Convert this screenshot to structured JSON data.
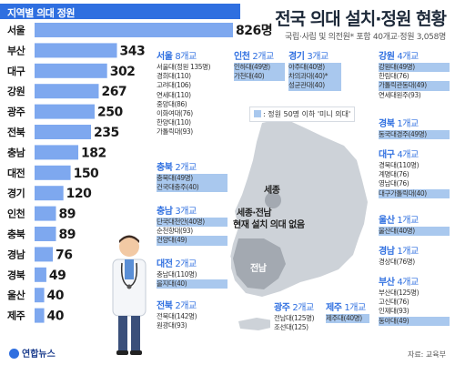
{
  "title": "전국 의대 설치·정원 현황",
  "subtitle": "국립·사립 및 의전원* 포함 40개교·정원 3,058명",
  "colors": {
    "bar": "#7ea8ef",
    "accent": "#2f6fe0",
    "mini": "#a9c8ee",
    "map": "#cdd2d8",
    "highlight": "#a3a9b1"
  },
  "chart_data": {
    "type": "bar",
    "orientation": "horizontal",
    "title": "지역별 의대 정원",
    "categories": [
      "서울",
      "부산",
      "대구",
      "강원",
      "광주",
      "전북",
      "충남",
      "대전",
      "경기",
      "인천",
      "충북",
      "경남",
      "경북",
      "울산",
      "제주"
    ],
    "values": [
      826,
      343,
      302,
      267,
      250,
      235,
      182,
      150,
      120,
      89,
      89,
      76,
      49,
      40,
      40
    ],
    "value_labels": [
      "826명",
      "343",
      "302",
      "267",
      "250",
      "235",
      "182",
      "150",
      "120",
      "89",
      "89",
      "76",
      "49",
      "40",
      "40"
    ],
    "xlim": [
      0,
      826
    ]
  },
  "note": ": 정원 50명 이하 '미니 의대'",
  "regions": [
    {
      "name": "서울",
      "count": "8개교",
      "items": [
        {
          "text": "서울대(정원 135명)",
          "mini": false
        },
        {
          "text": "경희대(110)",
          "mini": false
        },
        {
          "text": "고려대(106)",
          "mini": false
        },
        {
          "text": "연세대(110)",
          "mini": false
        },
        {
          "text": "중앙대(86)",
          "mini": false
        },
        {
          "text": "이화여대(76)",
          "mini": false
        },
        {
          "text": "한양대(110)",
          "mini": false
        },
        {
          "text": "가톨릭대(93)",
          "mini": false
        }
      ]
    },
    {
      "name": "인천",
      "count": "2개교",
      "items": [
        {
          "text": "인하대(49명)",
          "mini": true
        },
        {
          "text": "가천대(40)",
          "mini": true
        }
      ]
    },
    {
      "name": "경기",
      "count": "3개교",
      "items": [
        {
          "text": "아주대(40명)",
          "mini": true
        },
        {
          "text": "차의과대(40)*",
          "mini": true
        },
        {
          "text": "성균관대(40)",
          "mini": true
        }
      ]
    },
    {
      "name": "강원",
      "count": "4개교",
      "items": [
        {
          "text": "강원대(49명)",
          "mini": true
        },
        {
          "text": "한림대(76)",
          "mini": false
        },
        {
          "text": "가톨릭관동대(49)",
          "mini": true
        },
        {
          "text": "연세대원주(93)",
          "mini": false
        }
      ]
    },
    {
      "name": "경북",
      "count": "1개교",
      "items": [
        {
          "text": "동국대경주(49명)",
          "mini": true
        }
      ]
    },
    {
      "name": "대구",
      "count": "4개교",
      "items": [
        {
          "text": "경북대(110명)",
          "mini": false
        },
        {
          "text": "계명대(76)",
          "mini": false
        },
        {
          "text": "영남대(76)",
          "mini": false
        },
        {
          "text": "대구가톨릭대(40)",
          "mini": true
        }
      ]
    },
    {
      "name": "울산",
      "count": "1개교",
      "items": [
        {
          "text": "울산대(40명)",
          "mini": true
        }
      ]
    },
    {
      "name": "경남",
      "count": "1개교",
      "items": [
        {
          "text": "경상대(76명)",
          "mini": false
        }
      ]
    },
    {
      "name": "부산",
      "count": "4개교",
      "items": [
        {
          "text": "부산대(125명)",
          "mini": false
        },
        {
          "text": "고신대(76)",
          "mini": false
        },
        {
          "text": "인제대(93)",
          "mini": false
        },
        {
          "text": "동아대(49)",
          "mini": true
        }
      ]
    },
    {
      "name": "충북",
      "count": "2개교",
      "items": [
        {
          "text": "충북대(49명)",
          "mini": true
        },
        {
          "text": "건국대충주(40)",
          "mini": true
        }
      ]
    },
    {
      "name": "충남",
      "count": "3개교",
      "items": [
        {
          "text": "단국대천안(40명)",
          "mini": true
        },
        {
          "text": "순천향대(93)",
          "mini": false
        },
        {
          "text": "건양대(49)",
          "mini": true
        }
      ]
    },
    {
      "name": "대전",
      "count": "2개교",
      "items": [
        {
          "text": "충남대(110명)",
          "mini": false
        },
        {
          "text": "을지대(40)",
          "mini": true
        }
      ]
    },
    {
      "name": "전북",
      "count": "2개교",
      "items": [
        {
          "text": "전북대(142명)",
          "mini": false
        },
        {
          "text": "원광대(93)",
          "mini": false
        }
      ]
    },
    {
      "name": "광주",
      "count": "2개교",
      "items": [
        {
          "text": "전남대(125명)",
          "mini": false
        },
        {
          "text": "조선대(125)",
          "mini": false
        }
      ]
    },
    {
      "name": "제주",
      "count": "1개교",
      "items": [
        {
          "text": "제주대(40명)",
          "mini": true
        }
      ]
    }
  ],
  "map_labels": {
    "sejong": "세종",
    "sejong_jeonnam_1": "세종·전남",
    "sejong_jeonnam_2": "현재 설치 의대 없음",
    "jeonnam": "전남"
  },
  "logo": "연합뉴스",
  "source": "자료: 교육부"
}
